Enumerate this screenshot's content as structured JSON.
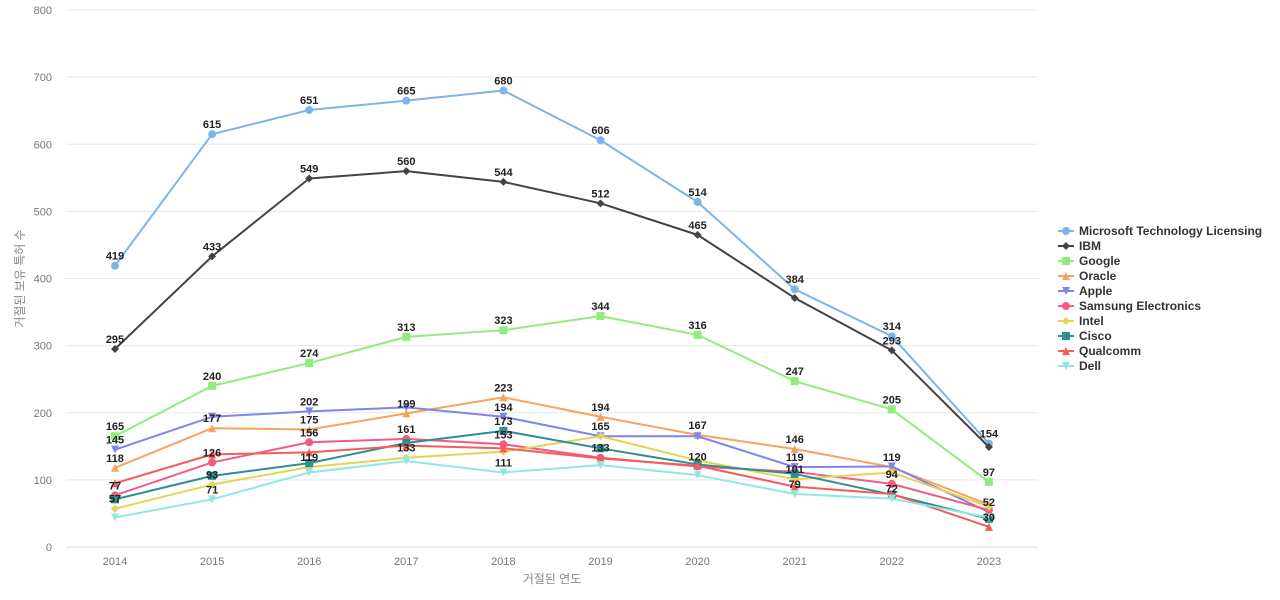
{
  "chart_data": {
    "type": "line",
    "title": "",
    "xlabel": "거절된 연도",
    "ylabel": "거절된 보유 특허 수",
    "ylim": [
      0,
      800
    ],
    "yticks": [
      0,
      100,
      200,
      300,
      400,
      500,
      600,
      700,
      800
    ],
    "grid": true,
    "legend_position": "right",
    "x": [
      "2014",
      "2015",
      "2016",
      "2017",
      "2018",
      "2019",
      "2020",
      "2021",
      "2022",
      "2023"
    ],
    "series": [
      {
        "name": "Microsoft Technology Licensing",
        "color": "#7cb5ec",
        "marker": "circle",
        "values": [
          419,
          615,
          651,
          665,
          680,
          606,
          514,
          384,
          314,
          154
        ]
      },
      {
        "name": "IBM",
        "color": "#434348",
        "marker": "diamond",
        "values": [
          295,
          433,
          549,
          560,
          544,
          512,
          465,
          371,
          293,
          149
        ]
      },
      {
        "name": "Google",
        "color": "#90ed7d",
        "marker": "square",
        "values": [
          165,
          240,
          274,
          313,
          323,
          344,
          316,
          247,
          205,
          97
        ]
      },
      {
        "name": "Oracle",
        "color": "#f7a35c",
        "marker": "triangle",
        "values": [
          118,
          177,
          175,
          199,
          223,
          194,
          167,
          146,
          119,
          63
        ]
      },
      {
        "name": "Apple",
        "color": "#8085e9",
        "marker": "triangle-down",
        "values": [
          145,
          194,
          202,
          208,
          194,
          165,
          165,
          119,
          120,
          52
        ]
      },
      {
        "name": "Samsung Electronics",
        "color": "#f15c80",
        "marker": "circle",
        "values": [
          77,
          126,
          156,
          161,
          153,
          133,
          120,
          112,
          94,
          55
        ]
      },
      {
        "name": "Intel",
        "color": "#e4d354",
        "marker": "diamond",
        "values": [
          57,
          93,
          119,
          133,
          142,
          165,
          129,
          101,
          111,
          60
        ]
      },
      {
        "name": "Cisco",
        "color": "#2b908f",
        "marker": "square",
        "values": [
          71,
          106,
          125,
          155,
          173,
          147,
          123,
          109,
          78,
          42
        ]
      },
      {
        "name": "Qualcomm",
        "color": "#f45b5b",
        "marker": "triangle",
        "values": [
          95,
          138,
          141,
          151,
          147,
          132,
          121,
          90,
          79,
          30
        ]
      },
      {
        "name": "Dell",
        "color": "#91e8e1",
        "marker": "triangle-down",
        "values": [
          44,
          71,
          111,
          128,
          111,
          122,
          107,
          79,
          72,
          44
        ]
      }
    ],
    "data_labels": [
      {
        "x": "2014",
        "text": "419",
        "value": 419
      },
      {
        "x": "2014",
        "text": "295",
        "value": 295
      },
      {
        "x": "2014",
        "text": "165",
        "value": 165
      },
      {
        "x": "2014",
        "text": "145",
        "value": 145
      },
      {
        "x": "2014",
        "text": "118",
        "value": 118
      },
      {
        "x": "2014",
        "text": "77",
        "value": 77
      },
      {
        "x": "2014",
        "text": "57",
        "value": 57
      },
      {
        "x": "2015",
        "text": "615",
        "value": 615
      },
      {
        "x": "2015",
        "text": "433",
        "value": 433
      },
      {
        "x": "2015",
        "text": "240",
        "value": 240
      },
      {
        "x": "2015",
        "text": "177",
        "value": 177
      },
      {
        "x": "2015",
        "text": "126",
        "value": 126
      },
      {
        "x": "2015",
        "text": "93",
        "value": 93
      },
      {
        "x": "2015",
        "text": "71",
        "value": 71
      },
      {
        "x": "2016",
        "text": "651",
        "value": 651
      },
      {
        "x": "2016",
        "text": "549",
        "value": 549
      },
      {
        "x": "2016",
        "text": "274",
        "value": 274
      },
      {
        "x": "2016",
        "text": "202",
        "value": 202
      },
      {
        "x": "2016",
        "text": "175",
        "value": 175
      },
      {
        "x": "2016",
        "text": "156",
        "value": 156
      },
      {
        "x": "2016",
        "text": "119",
        "value": 119
      },
      {
        "x": "2017",
        "text": "665",
        "value": 665
      },
      {
        "x": "2017",
        "text": "560",
        "value": 560
      },
      {
        "x": "2017",
        "text": "313",
        "value": 313
      },
      {
        "x": "2017",
        "text": "199",
        "value": 199
      },
      {
        "x": "2017",
        "text": "161",
        "value": 161
      },
      {
        "x": "2017",
        "text": "133",
        "value": 133
      },
      {
        "x": "2018",
        "text": "680",
        "value": 680
      },
      {
        "x": "2018",
        "text": "544",
        "value": 544
      },
      {
        "x": "2018",
        "text": "323",
        "value": 323
      },
      {
        "x": "2018",
        "text": "223",
        "value": 223
      },
      {
        "x": "2018",
        "text": "194",
        "value": 194
      },
      {
        "x": "2018",
        "text": "173",
        "value": 173
      },
      {
        "x": "2018",
        "text": "153",
        "value": 153
      },
      {
        "x": "2018",
        "text": "111",
        "value": 111
      },
      {
        "x": "2019",
        "text": "606",
        "value": 606
      },
      {
        "x": "2019",
        "text": "512",
        "value": 512
      },
      {
        "x": "2019",
        "text": "344",
        "value": 344
      },
      {
        "x": "2019",
        "text": "194",
        "value": 194
      },
      {
        "x": "2019",
        "text": "165",
        "value": 165
      },
      {
        "x": "2019",
        "text": "133",
        "value": 133
      },
      {
        "x": "2020",
        "text": "514",
        "value": 514
      },
      {
        "x": "2020",
        "text": "465",
        "value": 465
      },
      {
        "x": "2020",
        "text": "316",
        "value": 316
      },
      {
        "x": "2020",
        "text": "167",
        "value": 167
      },
      {
        "x": "2020",
        "text": "120",
        "value": 120
      },
      {
        "x": "2021",
        "text": "384",
        "value": 384
      },
      {
        "x": "2021",
        "text": "247",
        "value": 247
      },
      {
        "x": "2021",
        "text": "146",
        "value": 146
      },
      {
        "x": "2021",
        "text": "119",
        "value": 119
      },
      {
        "x": "2021",
        "text": "101",
        "value": 101
      },
      {
        "x": "2021",
        "text": "79",
        "value": 79
      },
      {
        "x": "2022",
        "text": "314",
        "value": 314
      },
      {
        "x": "2022",
        "text": "293",
        "value": 293
      },
      {
        "x": "2022",
        "text": "205",
        "value": 205
      },
      {
        "x": "2022",
        "text": "119",
        "value": 119
      },
      {
        "x": "2022",
        "text": "94",
        "value": 94
      },
      {
        "x": "2022",
        "text": "72",
        "value": 72
      },
      {
        "x": "2023",
        "text": "154",
        "value": 154
      },
      {
        "x": "2023",
        "text": "97",
        "value": 97
      },
      {
        "x": "2023",
        "text": "52",
        "value": 52
      },
      {
        "x": "2023",
        "text": "30",
        "value": 30
      }
    ]
  }
}
